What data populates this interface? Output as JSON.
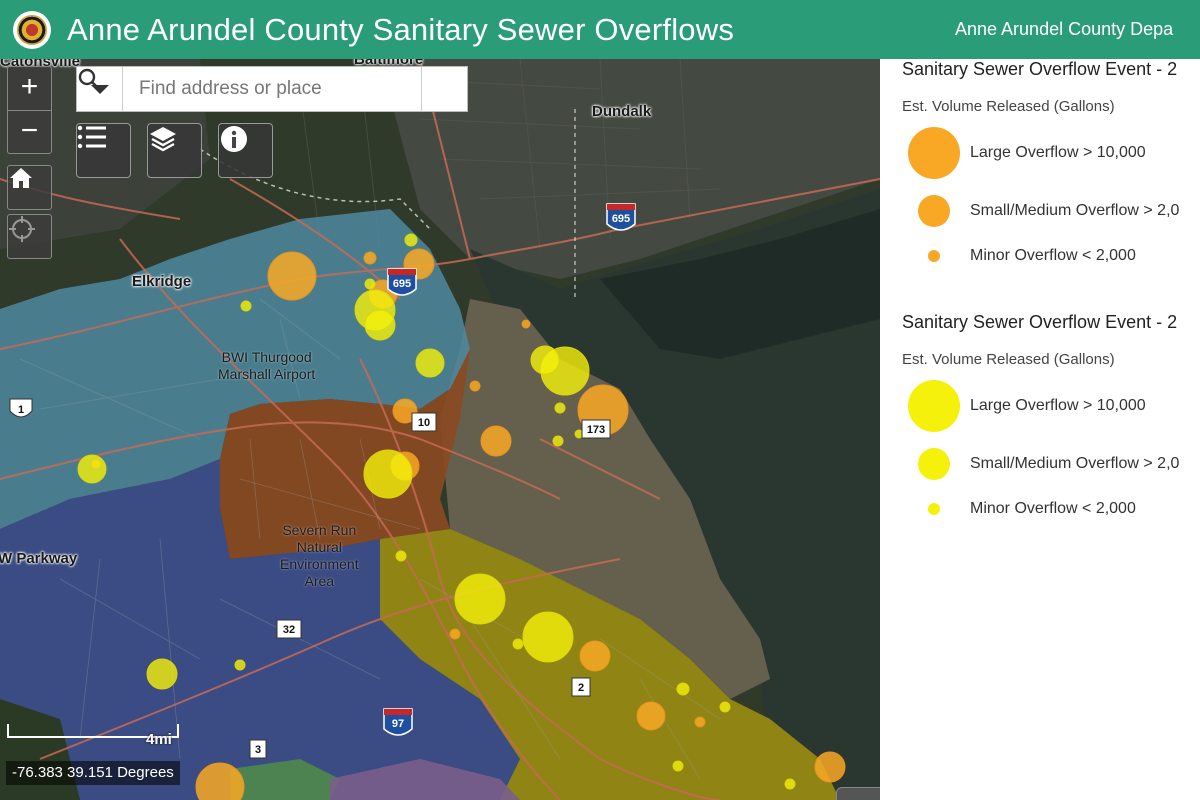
{
  "header": {
    "title": "Anne Arundel County Sanitary Sewer Overflows",
    "subtitle": "Anne Arundel County Depa"
  },
  "search": {
    "placeholder": "Find address or place"
  },
  "controls": {
    "zoom_in": "+",
    "zoom_out": "−",
    "icons": [
      "home-icon",
      "locate-icon",
      "list-icon",
      "layers-icon",
      "info-icon"
    ]
  },
  "map": {
    "scale_label": "4mi",
    "coordinates": "-76.383 39.151 Degrees",
    "places": [
      {
        "name": "Baltimore"
      },
      {
        "name": "Catonsville"
      },
      {
        "name": "Dundalk"
      },
      {
        "name": "Elkridge"
      },
      {
        "name": "BWI Thurgood\nMarshall Airport"
      },
      {
        "name": "Severn Run\nNatural\nEnvironment\nArea"
      },
      {
        "name": "W Parkway"
      }
    ],
    "route_shields": [
      "695",
      "695",
      "10",
      "173",
      "32",
      "2",
      "97",
      "3",
      "1"
    ]
  },
  "legend": {
    "sections": [
      {
        "title": "Sanitary Sewer Overflow Event - 2",
        "subtitle": "Est. Volume Released (Gallons)",
        "color": "#f9a825",
        "items": [
          {
            "label": "Large Overflow > 10,000"
          },
          {
            "label": "Small/Medium Overflow > 2,0"
          },
          {
            "label": "Minor Overflow < 2,000"
          }
        ]
      },
      {
        "title": "Sanitary Sewer Overflow Event - 2",
        "subtitle": "Est. Volume Released (Gallons)",
        "color": "#f5f10a",
        "items": [
          {
            "label": "Large Overflow > 10,000"
          },
          {
            "label": "Small/Medium Overflow > 2,0"
          },
          {
            "label": "Minor Overflow < 2,000"
          }
        ]
      }
    ]
  },
  "colors": {
    "header": "#2a9d78",
    "orange_overflow": "#f9a825",
    "yellow_overflow": "#f5f10a"
  }
}
